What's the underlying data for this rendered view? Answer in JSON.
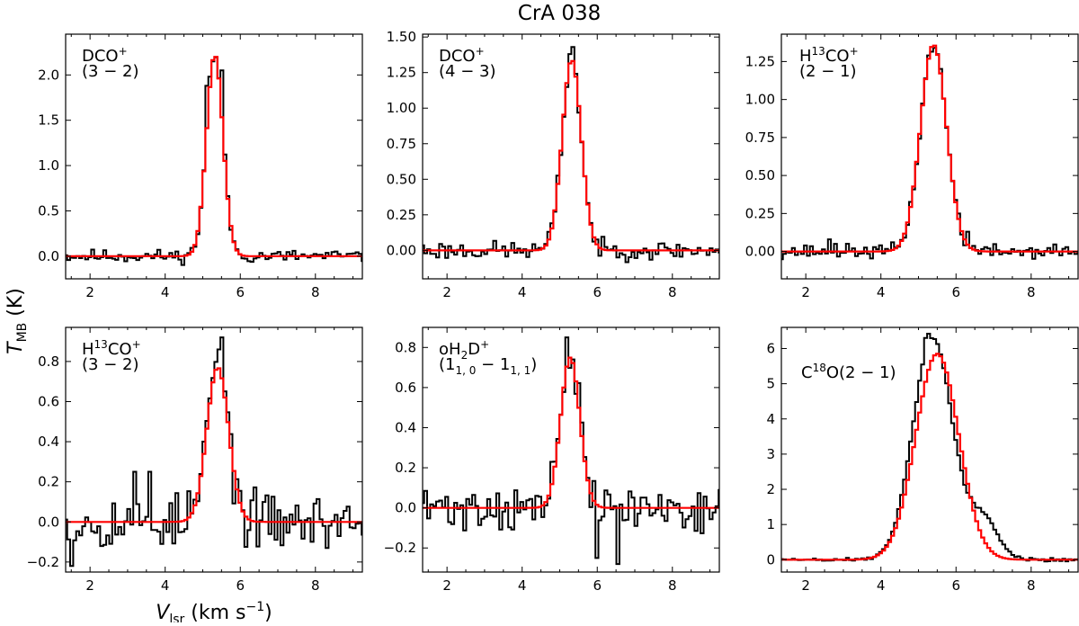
{
  "chart_data": {
    "type": "line",
    "title": "CrA 038",
    "xlabel": "V_lsr (km s^-1)",
    "ylabel": "T_MB (K)",
    "xlabel_parts": {
      "main": "V",
      "sub": "lsr",
      "units": " (km s",
      "exp": "−1",
      "close": ")"
    },
    "ylabel_parts": {
      "main": "T",
      "sub": "MB",
      "units": " (K)"
    },
    "xlim": [
      1.35,
      9.25
    ],
    "xticks": [
      2,
      4,
      6,
      8
    ],
    "series_styles": {
      "observed": "#000000",
      "fit": "#ff0000"
    },
    "panels": [
      {
        "name": "panel-dco-3-2",
        "label_lines": [
          [
            "DCO",
            "+",
            ""
          ],
          [
            "(3 − 2)",
            "",
            ""
          ]
        ],
        "ylim": [
          -0.25,
          2.45
        ],
        "yticks": [
          0.0,
          0.5,
          1.0,
          1.5,
          2.0
        ],
        "ytick_labels": [
          "0.0",
          "0.5",
          "1.0",
          "1.5",
          "2.0"
        ],
        "fit": {
          "center": 5.32,
          "peak": 2.22,
          "fwhm": 0.52,
          "shoulder": 0
        },
        "noise": 0.045,
        "seed": 11,
        "spikes": [
          [
            5.08,
            1.88
          ],
          [
            5.16,
            1.98
          ],
          [
            5.24,
            2.15
          ],
          [
            5.48,
            2.05
          ]
        ]
      },
      {
        "name": "panel-dco-4-3",
        "label_lines": [
          [
            "DCO",
            "+",
            ""
          ],
          [
            "(4 − 3)",
            "",
            ""
          ]
        ],
        "ylim": [
          -0.2,
          1.52
        ],
        "yticks": [
          0.0,
          0.25,
          0.5,
          0.75,
          1.0,
          1.25,
          1.5
        ],
        "ytick_labels": [
          "0.00",
          "0.25",
          "0.50",
          "0.75",
          "1.00",
          "1.25",
          "1.50"
        ],
        "fit": {
          "center": 5.32,
          "peak": 1.34,
          "fwhm": 0.6,
          "shoulder": 0
        },
        "noise": 0.04,
        "seed": 23,
        "spikes": [
          [
            5.36,
            1.43
          ],
          [
            5.3,
            1.38
          ]
        ]
      },
      {
        "name": "panel-h13co-2-1",
        "label_lines": [
          [
            "H",
            "13",
            "CO",
            "+"
          ],
          [
            "(2 − 1)",
            "",
            ""
          ]
        ],
        "ylim": [
          -0.18,
          1.43
        ],
        "yticks": [
          0.0,
          0.25,
          0.5,
          0.75,
          1.0,
          1.25
        ],
        "ytick_labels": [
          "0.00",
          "0.25",
          "0.50",
          "0.75",
          "1.00",
          "1.25"
        ],
        "fit": {
          "center": 5.4,
          "peak": 1.36,
          "fwhm": 0.82,
          "shoulder": 0
        },
        "noise": 0.028,
        "seed": 37,
        "spikes": [
          [
            2.6,
            0.08
          ],
          [
            2.8,
            0.05
          ],
          [
            6.1,
            0.25
          ],
          [
            6.3,
            0.13
          ]
        ]
      },
      {
        "name": "panel-h13co-3-2",
        "label_lines": [
          [
            "H",
            "13",
            "CO",
            "+"
          ],
          [
            "(3 − 2)",
            "",
            ""
          ]
        ],
        "ylim": [
          -0.25,
          0.97
        ],
        "yticks": [
          -0.2,
          0.0,
          0.2,
          0.4,
          0.6,
          0.8
        ],
        "ytick_labels": [
          "−0.2",
          "0.0",
          "0.2",
          "0.4",
          "0.6",
          "0.8"
        ],
        "fit": {
          "center": 5.4,
          "peak": 0.77,
          "fwhm": 0.68,
          "shoulder": 0
        },
        "noise": 0.085,
        "seed": 53,
        "spikes": [
          [
            5.5,
            0.92
          ],
          [
            5.42,
            0.86
          ],
          [
            3.2,
            0.25
          ],
          [
            3.6,
            0.25
          ],
          [
            1.55,
            -0.22
          ]
        ]
      },
      {
        "name": "panel-oh2d-1-1",
        "label_lines": [
          [
            "oH",
            "2",
            "D",
            "+"
          ],
          [
            "(1",
            "1, 0",
            " − 1",
            "1, 1",
            ")"
          ]
        ],
        "ylim": [
          -0.32,
          0.9
        ],
        "yticks": [
          -0.2,
          0.0,
          0.2,
          0.4,
          0.6,
          0.8
        ],
        "ytick_labels": [
          "−0.2",
          "0.0",
          "0.2",
          "0.4",
          "0.6",
          "0.8"
        ],
        "fit": {
          "center": 5.28,
          "peak": 0.75,
          "fwhm": 0.6,
          "shoulder": 0
        },
        "noise": 0.07,
        "seed": 71,
        "spikes": [
          [
            5.2,
            0.85
          ],
          [
            6.55,
            -0.28
          ],
          [
            6.0,
            -0.25
          ]
        ]
      },
      {
        "name": "panel-c18o-2-1",
        "label_lines": [
          [
            "C",
            "18",
            "O(2 − 1)",
            ""
          ]
        ],
        "ylim": [
          -0.35,
          6.6
        ],
        "yticks": [
          0,
          1,
          2,
          3,
          4,
          5,
          6
        ],
        "ytick_labels": [
          "0",
          "1",
          "2",
          "3",
          "4",
          "5",
          "6"
        ],
        "fit": {
          "center": 5.5,
          "peak": 5.85,
          "fwhm": 1.35,
          "shoulder": 0
        },
        "observed_shift": -0.12,
        "observed_peak": 6.3,
        "observed_wing": 1.1,
        "noise": 0.035,
        "seed": 89,
        "spikes": [
          [
            5.28,
            6.42
          ],
          [
            5.2,
            6.3
          ]
        ]
      }
    ]
  }
}
